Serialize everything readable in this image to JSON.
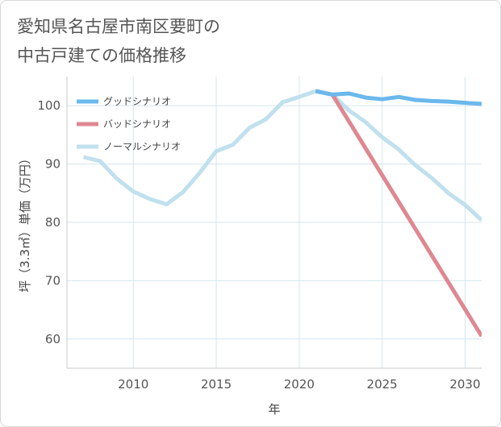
{
  "title_line1": "愛知県名古屋市南区要町の",
  "title_line2": "中古戸建ての価格推移",
  "chart_data": {
    "type": "line",
    "xlabel": "年",
    "ylabel": "坪（3.3㎡）単価（万円）",
    "xlim": [
      2006,
      2031
    ],
    "ylim": [
      55,
      105
    ],
    "x_ticks": [
      2010,
      2015,
      2020,
      2025,
      2030
    ],
    "y_ticks": [
      60,
      70,
      80,
      90,
      100
    ],
    "grid": true,
    "legend_position": "top-left",
    "series": [
      {
        "name": "グッドシナリオ",
        "color": "#6ab8ec",
        "points": [
          [
            2021,
            102.5
          ],
          [
            2022,
            101.9
          ],
          [
            2023,
            102.1
          ],
          [
            2024,
            101.4
          ],
          [
            2025,
            101.1
          ],
          [
            2026,
            101.5
          ],
          [
            2027,
            101.0
          ],
          [
            2028,
            100.8
          ],
          [
            2029,
            100.7
          ],
          [
            2030,
            100.5
          ],
          [
            2031,
            100.3
          ]
        ]
      },
      {
        "name": "バッドシナリオ",
        "color": "#de8891",
        "points": [
          [
            2021,
            102.5
          ],
          [
            2022,
            101.9
          ],
          [
            2031,
            60.5
          ]
        ]
      },
      {
        "name": "ノーマルシナリオ",
        "color": "#c0e0ee",
        "points": [
          [
            2007,
            91.2
          ],
          [
            2008,
            90.5
          ],
          [
            2009,
            87.5
          ],
          [
            2010,
            85.3
          ],
          [
            2011,
            84.0
          ],
          [
            2012,
            83.1
          ],
          [
            2013,
            85.2
          ],
          [
            2014,
            88.5
          ],
          [
            2015,
            92.2
          ],
          [
            2016,
            93.3
          ],
          [
            2017,
            96.2
          ],
          [
            2018,
            97.7
          ],
          [
            2019,
            100.6
          ],
          [
            2020,
            101.5
          ],
          [
            2021,
            102.5
          ],
          [
            2022,
            101.9
          ],
          [
            2023,
            99.2
          ],
          [
            2024,
            97.2
          ],
          [
            2025,
            94.6
          ],
          [
            2026,
            92.5
          ],
          [
            2027,
            89.8
          ],
          [
            2028,
            87.6
          ],
          [
            2029,
            85.0
          ],
          [
            2030,
            83.0
          ],
          [
            2031,
            80.4
          ]
        ]
      }
    ]
  }
}
